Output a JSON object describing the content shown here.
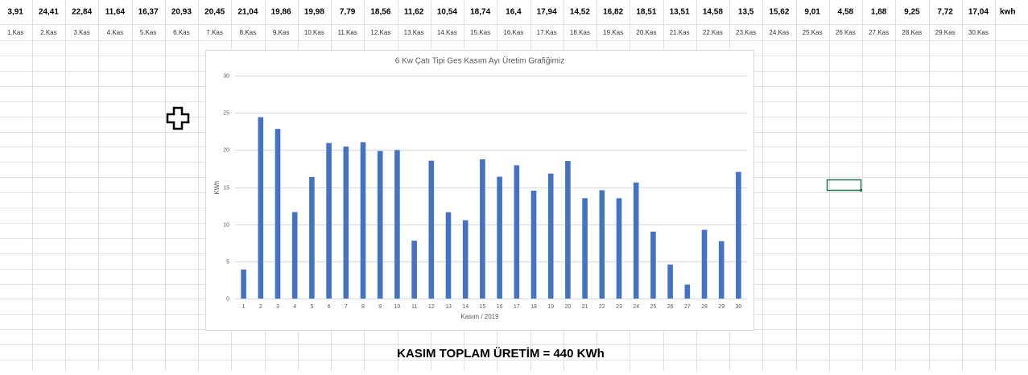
{
  "sheet": {
    "values": [
      "3,91",
      "24,41",
      "22,84",
      "11,64",
      "16,37",
      "20,93",
      "20,45",
      "21,04",
      "19,86",
      "19,98",
      "7,79",
      "18,56",
      "11,62",
      "10,54",
      "18,74",
      "16,4",
      "17,94",
      "14,52",
      "16,82",
      "18,51",
      "13,51",
      "14,58",
      "13,5",
      "15,62",
      "9,01",
      "4,58",
      "1,88",
      "9,25",
      "7,72",
      "17,04"
    ],
    "unit": "kwh",
    "days": [
      "1.Kas",
      "2.Kas",
      "3.Kas",
      "4.Kas",
      "5.Kas",
      "6.Kas",
      "7.Kas",
      "8.Kas",
      "9.Kas",
      "10.Kas",
      "11.Kas",
      "12.Kas",
      "13.Kas",
      "14.Kas",
      "15.Kas",
      "16.Kas",
      "17.Kas",
      "18.Kas",
      "19.Kas",
      "20.Kas",
      "21.Kas",
      "22.Kas",
      "23.Kas",
      "24.Kas",
      "25.Kas",
      "26 Kas",
      "27.Kas",
      "28.Kas",
      "29.Kas",
      "30.Kas"
    ],
    "total": "KASIM TOPLAM ÜRETİM = 440 KWh"
  },
  "chart_data": {
    "type": "bar",
    "title": "6 Kw Çatı Tipi Ges Kasım Ayı Üretim Grafiğimiz",
    "x_label": "Kasım / 2019",
    "y_label": "KWh",
    "categories": [
      "1",
      "2",
      "3",
      "4",
      "5",
      "6",
      "7",
      "8",
      "9",
      "10",
      "11",
      "12",
      "13",
      "14",
      "15",
      "16",
      "17",
      "18",
      "19",
      "20",
      "21",
      "22",
      "23",
      "24",
      "25",
      "26",
      "27",
      "28",
      "29",
      "30"
    ],
    "values": [
      3.91,
      24.41,
      22.84,
      11.64,
      16.37,
      20.93,
      20.45,
      21.04,
      19.86,
      19.98,
      7.79,
      18.56,
      11.62,
      10.54,
      18.74,
      16.4,
      17.94,
      14.52,
      16.82,
      18.51,
      13.51,
      14.58,
      13.5,
      15.62,
      9.01,
      4.58,
      1.88,
      9.25,
      7.72,
      17.04
    ],
    "color": "#4472c4",
    "ylim": [
      0,
      30
    ],
    "yticks": [
      0,
      5,
      10,
      15,
      20,
      25,
      30
    ],
    "grid": true
  }
}
